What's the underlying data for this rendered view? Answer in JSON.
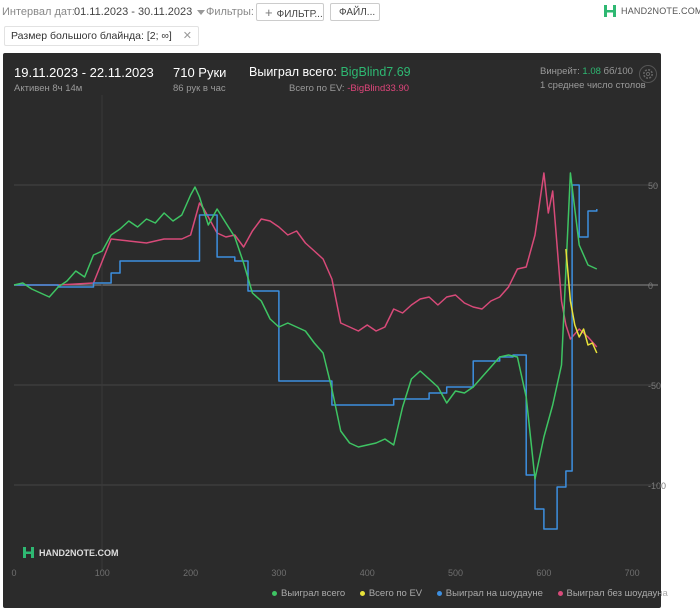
{
  "toolbar": {
    "interval_label": "Интервал дат:",
    "interval_value": "01.11.2023 - 30.11.2023",
    "filters_label": "Фильтры:",
    "filter_button": "ФИЛЬТР...",
    "file_button": "ФАЙЛ...",
    "logo_text": "HAND2NOTE.COM"
  },
  "chips": [
    {
      "label": "Размер большого блайнда: [2; ∞]"
    }
  ],
  "panel": {
    "date_range": "19.11.2023 - 22.11.2023",
    "active": "Активен 8ч 14м",
    "hands": "710 Руки",
    "hands_per_hour": "86 рук в час",
    "won_label": "Выиграл всего:",
    "won_value": "BigBlind7.69",
    "ev_label": "Всего по EV:",
    "ev_value": "-BigBlind33.90",
    "winrate_label": "Винрейт:",
    "winrate_value": "1.08",
    "winrate_unit": "бб/100",
    "tables": "1 среднее число столов",
    "watermark": "HAND2NOTE.COM"
  },
  "colors": {
    "won": "#3ec463",
    "ev": "#e8e23a",
    "showdown": "#3d8fe0",
    "nonshowdown": "#d84a79",
    "accent_green": "#2eb872",
    "accent_pink": "#e0457b"
  },
  "legend": [
    {
      "label": "Выиграл всего",
      "color": "#3ec463"
    },
    {
      "label": "Всего по EV",
      "color": "#e8e23a"
    },
    {
      "label": "Выиграл на шоудауне",
      "color": "#3d8fe0"
    },
    {
      "label": "Выиграл без шоудауна",
      "color": "#d84a79"
    }
  ],
  "chart_data": {
    "type": "line",
    "x_ticks": [
      "0",
      "100",
      "200",
      "300",
      "400",
      "500",
      "600",
      "700"
    ],
    "y_ticks": [
      "50",
      "0",
      "-50",
      "-100"
    ],
    "xlim": [
      0,
      710
    ],
    "ylim": [
      -140,
      60
    ],
    "series": [
      {
        "name": "Выиграл всего",
        "color": "#3ec463",
        "points": [
          [
            0,
            0
          ],
          [
            10,
            1
          ],
          [
            20,
            -2
          ],
          [
            30,
            -4
          ],
          [
            40,
            -6
          ],
          [
            50,
            -1
          ],
          [
            60,
            2
          ],
          [
            70,
            7
          ],
          [
            80,
            4
          ],
          [
            90,
            15
          ],
          [
            100,
            17
          ],
          [
            110,
            25
          ],
          [
            120,
            28
          ],
          [
            130,
            32
          ],
          [
            140,
            29
          ],
          [
            150,
            33
          ],
          [
            160,
            31
          ],
          [
            170,
            36
          ],
          [
            180,
            32
          ],
          [
            190,
            35
          ],
          [
            200,
            45
          ],
          [
            205,
            49
          ],
          [
            210,
            44
          ],
          [
            220,
            30
          ],
          [
            230,
            38
          ],
          [
            240,
            31
          ],
          [
            250,
            24
          ],
          [
            260,
            11
          ],
          [
            270,
            -4
          ],
          [
            280,
            -8
          ],
          [
            290,
            -17
          ],
          [
            300,
            -21
          ],
          [
            310,
            -19
          ],
          [
            320,
            -21
          ],
          [
            330,
            -23
          ],
          [
            340,
            -29
          ],
          [
            350,
            -34
          ],
          [
            360,
            -52
          ],
          [
            370,
            -73
          ],
          [
            380,
            -79
          ],
          [
            390,
            -81
          ],
          [
            400,
            -80
          ],
          [
            410,
            -79
          ],
          [
            420,
            -77
          ],
          [
            430,
            -80
          ],
          [
            440,
            -61
          ],
          [
            450,
            -47
          ],
          [
            460,
            -43
          ],
          [
            470,
            -47
          ],
          [
            480,
            -51
          ],
          [
            490,
            -59
          ],
          [
            500,
            -53
          ],
          [
            510,
            -54
          ],
          [
            520,
            -51
          ],
          [
            530,
            -46
          ],
          [
            540,
            -41
          ],
          [
            550,
            -36
          ],
          [
            560,
            -35
          ],
          [
            570,
            -36
          ],
          [
            580,
            -56
          ],
          [
            590,
            -97
          ],
          [
            600,
            -76
          ],
          [
            610,
            -60
          ],
          [
            620,
            -40
          ],
          [
            630,
            56
          ],
          [
            640,
            20
          ],
          [
            650,
            10
          ],
          [
            660,
            8
          ]
        ]
      },
      {
        "name": "Всего по EV",
        "color": "#e8e23a",
        "points": [
          [
            625,
            18
          ],
          [
            630,
            -8
          ],
          [
            635,
            -20
          ],
          [
            640,
            -26
          ],
          [
            645,
            -22
          ],
          [
            650,
            -30
          ],
          [
            655,
            -29
          ],
          [
            660,
            -34
          ]
        ]
      },
      {
        "name": "Выиграл на шоудауне",
        "color": "#3d8fe0",
        "points": [
          [
            0,
            0
          ],
          [
            50,
            -1
          ],
          [
            90,
            1
          ],
          [
            110,
            6
          ],
          [
            120,
            12
          ],
          [
            200,
            12
          ],
          [
            210,
            35
          ],
          [
            220,
            35
          ],
          [
            230,
            14
          ],
          [
            250,
            12
          ],
          [
            265,
            -3
          ],
          [
            290,
            -3
          ],
          [
            300,
            -48
          ],
          [
            330,
            -48
          ],
          [
            360,
            -60
          ],
          [
            410,
            -60
          ],
          [
            430,
            -57
          ],
          [
            470,
            -54
          ],
          [
            490,
            -51
          ],
          [
            520,
            -38
          ],
          [
            550,
            -36
          ],
          [
            565,
            -35
          ],
          [
            580,
            -95
          ],
          [
            590,
            -112
          ],
          [
            600,
            -122
          ],
          [
            615,
            -101
          ],
          [
            625,
            -93
          ],
          [
            632,
            50
          ],
          [
            640,
            24
          ],
          [
            650,
            37
          ],
          [
            660,
            38
          ]
        ]
      },
      {
        "name": "Выиграл без шоудауна",
        "color": "#d84a79",
        "points": [
          [
            0,
            0
          ],
          [
            10,
            0
          ],
          [
            50,
            0
          ],
          [
            90,
            1
          ],
          [
            110,
            23
          ],
          [
            130,
            22
          ],
          [
            150,
            21
          ],
          [
            170,
            23
          ],
          [
            190,
            23
          ],
          [
            200,
            25
          ],
          [
            210,
            41
          ],
          [
            215,
            38
          ],
          [
            230,
            26
          ],
          [
            240,
            24
          ],
          [
            250,
            25
          ],
          [
            260,
            19
          ],
          [
            270,
            27
          ],
          [
            280,
            33
          ],
          [
            290,
            32
          ],
          [
            300,
            29
          ],
          [
            310,
            25
          ],
          [
            320,
            27
          ],
          [
            330,
            21
          ],
          [
            340,
            17
          ],
          [
            350,
            13
          ],
          [
            360,
            3
          ],
          [
            370,
            -19
          ],
          [
            380,
            -21
          ],
          [
            390,
            -23
          ],
          [
            400,
            -20
          ],
          [
            410,
            -23
          ],
          [
            420,
            -21
          ],
          [
            430,
            -12
          ],
          [
            440,
            -14
          ],
          [
            450,
            -10
          ],
          [
            460,
            -7
          ],
          [
            470,
            -6
          ],
          [
            480,
            -10
          ],
          [
            490,
            -6
          ],
          [
            500,
            -5
          ],
          [
            510,
            -9
          ],
          [
            520,
            -11
          ],
          [
            530,
            -12
          ],
          [
            540,
            -8
          ],
          [
            550,
            -6
          ],
          [
            560,
            -1
          ],
          [
            570,
            8
          ],
          [
            580,
            9
          ],
          [
            590,
            25
          ],
          [
            600,
            56
          ],
          [
            605,
            36
          ],
          [
            610,
            47
          ],
          [
            620,
            -8
          ],
          [
            625,
            -20
          ],
          [
            630,
            -27
          ],
          [
            640,
            -22
          ],
          [
            650,
            -26
          ],
          [
            660,
            -31
          ]
        ]
      }
    ]
  }
}
